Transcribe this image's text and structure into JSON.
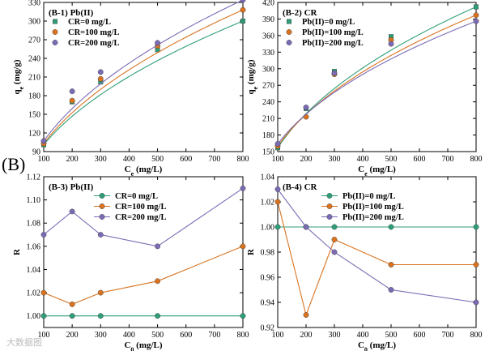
{
  "section_label": "(B)",
  "watermark": "大数据图",
  "chart_data": [
    {
      "id": "b1",
      "type": "scatter",
      "panel_label": "(B-1) Pb(II)",
      "xlabel_main": "C",
      "xlabel_sub": "e",
      "xlabel_unit": " (mg/L)",
      "ylabel_main": "q",
      "ylabel_sub": "e",
      "ylabel_unit": " (mg/g)",
      "xlim": [
        100,
        800
      ],
      "ylim": [
        90,
        330
      ],
      "xticks": [
        100,
        200,
        300,
        400,
        500,
        600,
        700,
        800
      ],
      "yticks": [
        90,
        120,
        150,
        180,
        210,
        240,
        270,
        300,
        330
      ],
      "legend_position": "top-left",
      "fit_lines": true,
      "series": [
        {
          "name": "CR=0 mg/L",
          "color": "#2e9e7a",
          "marker": "square",
          "x": [
            100,
            200,
            300,
            500,
            800
          ],
          "y": [
            101,
            170,
            202,
            254,
            300
          ]
        },
        {
          "name": "CR=100 mg/L",
          "color": "#d9731f",
          "marker": "circle",
          "x": [
            100,
            200,
            300,
            500,
            800
          ],
          "y": [
            103,
            172,
            207,
            260,
            318
          ]
        },
        {
          "name": "CR=200 mg/L",
          "color": "#7b6bb5",
          "marker": "circle",
          "x": [
            100,
            200,
            300,
            500,
            800
          ],
          "y": [
            107,
            187,
            218,
            265,
            334
          ]
        }
      ]
    },
    {
      "id": "b2",
      "type": "scatter",
      "panel_label": "(B-2) CR",
      "xlabel_main": "C",
      "xlabel_sub": "e",
      "xlabel_unit": " (mg/L)",
      "ylabel_main": "q",
      "ylabel_sub": "e",
      "ylabel_unit": " (mg/g)",
      "xlim": [
        100,
        800
      ],
      "ylim": [
        150,
        420
      ],
      "xticks": [
        100,
        200,
        300,
        400,
        500,
        600,
        700,
        800
      ],
      "yticks": [
        150,
        180,
        210,
        240,
        270,
        300,
        330,
        360,
        390,
        420
      ],
      "legend_position": "top-left",
      "fit_lines": true,
      "series": [
        {
          "name": "Pb(II)=0 mg/L",
          "color": "#2e9e7a",
          "marker": "square",
          "x": [
            100,
            200,
            300,
            500,
            800
          ],
          "y": [
            157,
            228,
            295,
            358,
            412
          ]
        },
        {
          "name": "Pb(II)=100 mg/L",
          "color": "#d9731f",
          "marker": "circle",
          "x": [
            100,
            200,
            300,
            500,
            800
          ],
          "y": [
            160,
            213,
            290,
            352,
            397
          ]
        },
        {
          "name": "Pb(II)=200 mg/L",
          "color": "#7b6bb5",
          "marker": "circle",
          "x": [
            100,
            200,
            300,
            500,
            800
          ],
          "y": [
            164,
            230,
            292,
            345,
            386
          ]
        }
      ]
    },
    {
      "id": "b3",
      "type": "line",
      "panel_label": "(B-3) Pb(II)",
      "xlabel_main": "C",
      "xlabel_sub": "0",
      "xlabel_unit": " (mg/L)",
      "ylabel_main": "R",
      "ylabel_sub": "",
      "ylabel_unit": "",
      "xlim": [
        100,
        800
      ],
      "ylim": [
        0.99,
        1.12
      ],
      "xticks": [
        100,
        200,
        300,
        400,
        500,
        600,
        700,
        800
      ],
      "yticks": [
        1.0,
        1.02,
        1.04,
        1.06,
        1.08,
        1.1,
        1.12
      ],
      "ytick_decimals": 2,
      "legend_position": "top-center",
      "series": [
        {
          "name": "CR=0 mg/L",
          "color": "#2e9e7a",
          "marker": "circle",
          "x": [
            100,
            200,
            300,
            500,
            800
          ],
          "y": [
            1.0,
            1.0,
            1.0,
            1.0,
            1.0
          ]
        },
        {
          "name": "CR=100 mg/L",
          "color": "#d9731f",
          "marker": "circle",
          "x": [
            100,
            200,
            300,
            500,
            800
          ],
          "y": [
            1.02,
            1.01,
            1.02,
            1.03,
            1.06
          ]
        },
        {
          "name": "CR=200 mg/L",
          "color": "#7b6bb5",
          "marker": "circle",
          "x": [
            100,
            200,
            300,
            500,
            800
          ],
          "y": [
            1.07,
            1.09,
            1.07,
            1.06,
            1.11
          ]
        }
      ]
    },
    {
      "id": "b4",
      "type": "line",
      "panel_label": "(B-4) CR",
      "xlabel_main": "C",
      "xlabel_sub": "0",
      "xlabel_unit": " (mg/L)",
      "ylabel_main": "R",
      "ylabel_sub": "",
      "ylabel_unit": "",
      "xlim": [
        100,
        800
      ],
      "ylim": [
        0.92,
        1.04
      ],
      "xticks": [
        100,
        200,
        300,
        400,
        500,
        600,
        700,
        800
      ],
      "yticks": [
        0.92,
        0.94,
        0.96,
        0.98,
        1.0,
        1.02,
        1.04
      ],
      "ytick_decimals": 2,
      "legend_position": "top-right",
      "series": [
        {
          "name": "Pb(II)=0 mg/L",
          "color": "#2e9e7a",
          "marker": "circle",
          "x": [
            100,
            200,
            300,
            500,
            800
          ],
          "y": [
            1.0,
            1.0,
            1.0,
            1.0,
            1.0
          ]
        },
        {
          "name": "Pb(II)=100 mg/L",
          "color": "#d9731f",
          "marker": "circle",
          "x": [
            100,
            200,
            300,
            500,
            800
          ],
          "y": [
            1.02,
            0.93,
            0.99,
            0.97,
            0.97
          ]
        },
        {
          "name": "Pb(II)=200 mg/L",
          "color": "#7b6bb5",
          "marker": "circle",
          "x": [
            100,
            200,
            300,
            500,
            800
          ],
          "y": [
            1.03,
            1.0,
            0.98,
            0.95,
            0.94
          ]
        }
      ]
    }
  ]
}
